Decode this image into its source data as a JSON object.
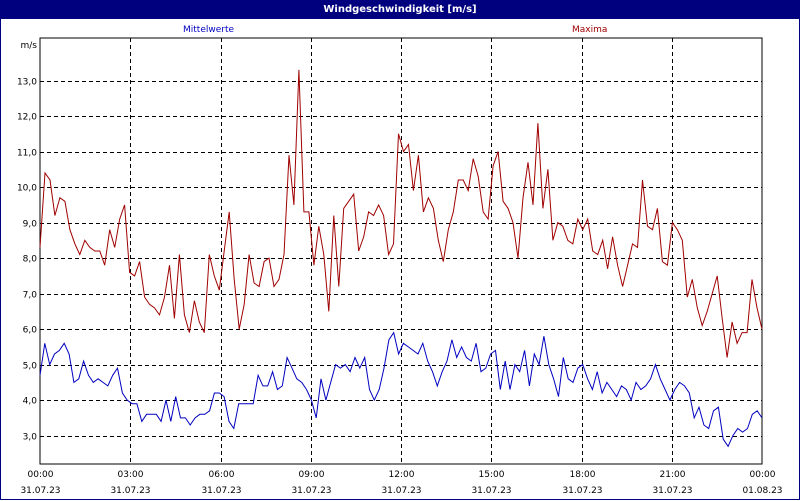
{
  "window": {
    "title": "Windgeschwindigkeit [m/s]"
  },
  "chart_data": {
    "type": "line",
    "title": "Windgeschwindigkeit [m/s]",
    "ylabel": "m/s",
    "ylim": [
      2.2,
      14.2
    ],
    "yticks": [
      "3,0",
      "4,0",
      "5,0",
      "6,0",
      "7,0",
      "8,0",
      "9,0",
      "10,0",
      "11,0",
      "12,0",
      "13,0"
    ],
    "xlim": [
      0,
      24
    ],
    "xticks": [
      {
        "time": "00:00",
        "date": "31.07.23"
      },
      {
        "time": "03:00",
        "date": "31.07.23"
      },
      {
        "time": "06:00",
        "date": "31.07.23"
      },
      {
        "time": "09:00",
        "date": "31.07.23"
      },
      {
        "time": "12:00",
        "date": "31.07.23"
      },
      {
        "time": "15:00",
        "date": "31.07.23"
      },
      {
        "time": "18:00",
        "date": "31.07.23"
      },
      {
        "time": "21:00",
        "date": "31.07.23"
      },
      {
        "time": "00:00",
        "date": "01.08.23"
      }
    ],
    "grid": true,
    "series": [
      {
        "name": "Mittelwerte",
        "color": "#0000c0",
        "values": [
          4.7,
          5.6,
          5.0,
          5.3,
          5.4,
          5.6,
          5.3,
          4.5,
          4.6,
          5.1,
          4.7,
          4.5,
          4.6,
          4.5,
          4.4,
          4.7,
          4.9,
          4.2,
          4.0,
          3.9,
          3.9,
          3.4,
          3.6,
          3.6,
          3.6,
          3.4,
          4.0,
          3.4,
          4.1,
          3.5,
          3.5,
          3.3,
          3.5,
          3.6,
          3.6,
          3.7,
          4.2,
          4.2,
          4.1,
          3.4,
          3.2,
          3.9,
          3.9,
          3.9,
          3.9,
          4.7,
          4.4,
          4.4,
          4.8,
          4.3,
          4.4,
          5.2,
          4.9,
          4.6,
          4.5,
          4.3,
          4.0,
          3.5,
          4.6,
          4.0,
          4.5,
          5.0,
          4.9,
          5.0,
          4.8,
          5.2,
          4.9,
          5.2,
          4.3,
          4.0,
          4.3,
          4.9,
          5.7,
          5.9,
          5.3,
          5.6,
          5.5,
          5.4,
          5.3,
          5.6,
          5.1,
          4.8,
          4.4,
          4.8,
          5.1,
          5.7,
          5.2,
          5.5,
          5.2,
          5.1,
          5.6,
          4.8,
          4.9,
          5.3,
          5.4,
          4.3,
          5.1,
          4.3,
          5.0,
          4.8,
          5.4,
          4.4,
          5.3,
          5.0,
          5.8,
          5.0,
          4.6,
          4.1,
          5.2,
          4.6,
          4.5,
          4.9,
          5.0,
          4.6,
          4.3,
          4.8,
          4.2,
          4.5,
          4.3,
          4.1,
          4.4,
          4.3,
          4.0,
          4.5,
          4.3,
          4.4,
          4.6,
          5.0,
          4.6,
          4.3,
          4.0,
          4.3,
          4.5,
          4.4,
          4.2,
          3.5,
          3.8,
          3.3,
          3.2,
          3.7,
          3.8,
          2.9,
          2.7,
          3.0,
          3.2,
          3.1,
          3.2,
          3.6,
          3.7,
          3.5
        ]
      },
      {
        "name": "Maxima",
        "color": "#a00000",
        "values": [
          8.3,
          10.4,
          10.2,
          9.2,
          9.7,
          9.6,
          8.8,
          8.4,
          8.1,
          8.5,
          8.3,
          8.2,
          8.2,
          7.8,
          8.8,
          8.3,
          9.1,
          9.5,
          7.6,
          7.5,
          7.9,
          6.9,
          6.7,
          6.6,
          6.4,
          6.9,
          7.8,
          6.3,
          8.1,
          6.4,
          5.9,
          6.8,
          6.2,
          5.9,
          8.1,
          7.5,
          7.1,
          8.2,
          9.3,
          7.4,
          6.0,
          6.7,
          8.1,
          7.3,
          7.2,
          7.9,
          8.0,
          7.2,
          7.4,
          8.1,
          10.9,
          9.5,
          13.3,
          9.3,
          9.3,
          7.8,
          8.9,
          8.1,
          6.5,
          9.2,
          7.2,
          9.4,
          9.6,
          9.8,
          8.2,
          8.6,
          9.3,
          9.2,
          9.5,
          9.2,
          8.1,
          8.4,
          11.5,
          11.0,
          11.2,
          9.9,
          10.9,
          9.3,
          9.7,
          9.4,
          8.5,
          7.9,
          8.8,
          9.3,
          10.2,
          10.2,
          9.9,
          10.8,
          10.3,
          9.3,
          9.1,
          10.6,
          11.0,
          9.6,
          9.4,
          9.0,
          8.0,
          9.7,
          10.7,
          9.5,
          11.8,
          9.4,
          10.5,
          8.5,
          9.0,
          8.9,
          8.5,
          8.4,
          9.1,
          8.8,
          9.1,
          8.2,
          8.1,
          8.5,
          7.7,
          8.6,
          7.8,
          7.2,
          7.8,
          8.4,
          8.3,
          10.2,
          8.9,
          8.8,
          9.4,
          7.9,
          7.8,
          9.0,
          8.8,
          8.5,
          6.9,
          7.4,
          6.6,
          6.1,
          6.5,
          7.0,
          7.5,
          6.3,
          5.2,
          6.2,
          5.6,
          5.9,
          5.9,
          7.4,
          6.6,
          6.0
        ]
      }
    ]
  }
}
